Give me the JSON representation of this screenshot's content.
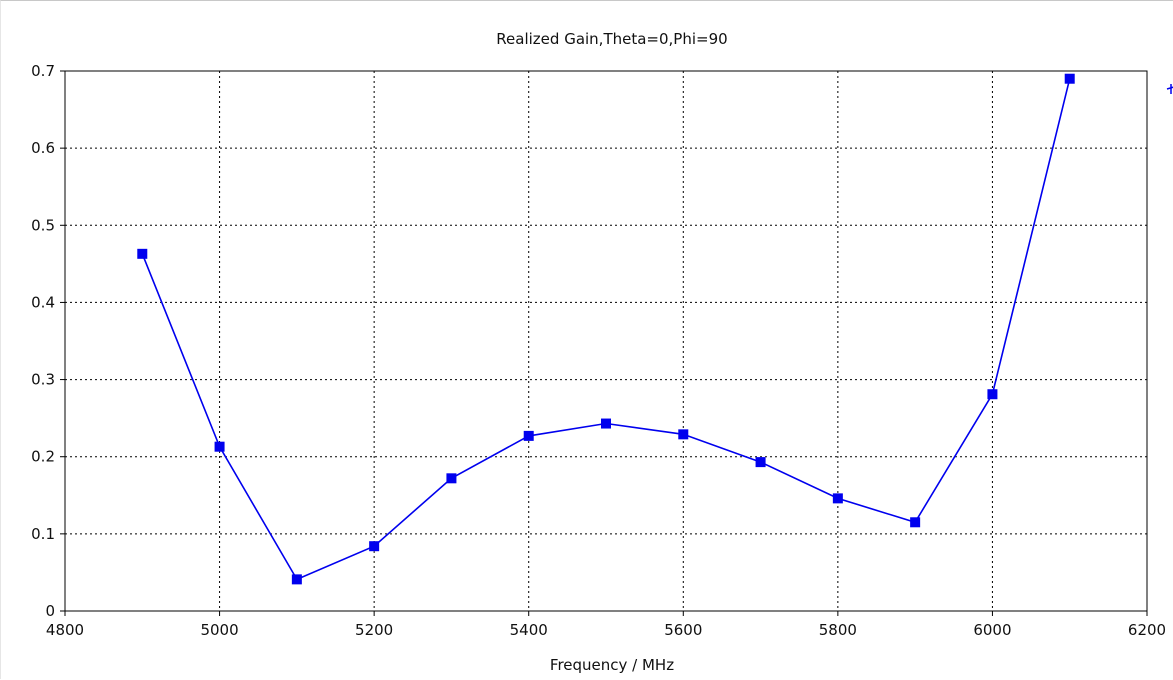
{
  "chart_data": {
    "type": "line",
    "title": "Realized Gain,Theta=0,Phi=90",
    "xlabel": "Frequency / MHz",
    "ylabel": "",
    "xlim": [
      4800,
      6200
    ],
    "ylim": [
      0,
      0.7
    ],
    "xticks": [
      "4800",
      "5000",
      "5200",
      "5400",
      "5600",
      "5800",
      "6000",
      "6200"
    ],
    "yticks": [
      "0",
      "0.1",
      "0.2",
      "0.3",
      "0.4",
      "0.5",
      "0.6",
      "0.7"
    ],
    "grid": true,
    "grid_style": "dotted",
    "marker": "square",
    "series": [
      {
        "color": "#0000ee",
        "x": [
          4900,
          5000,
          5100,
          5200,
          5300,
          5400,
          5500,
          5600,
          5700,
          5800,
          5900,
          6000,
          6100
        ],
        "values": [
          0.463,
          0.213,
          0.041,
          0.084,
          0.172,
          0.227,
          0.243,
          0.229,
          0.193,
          0.146,
          0.115,
          0.281,
          0.69
        ]
      }
    ]
  }
}
